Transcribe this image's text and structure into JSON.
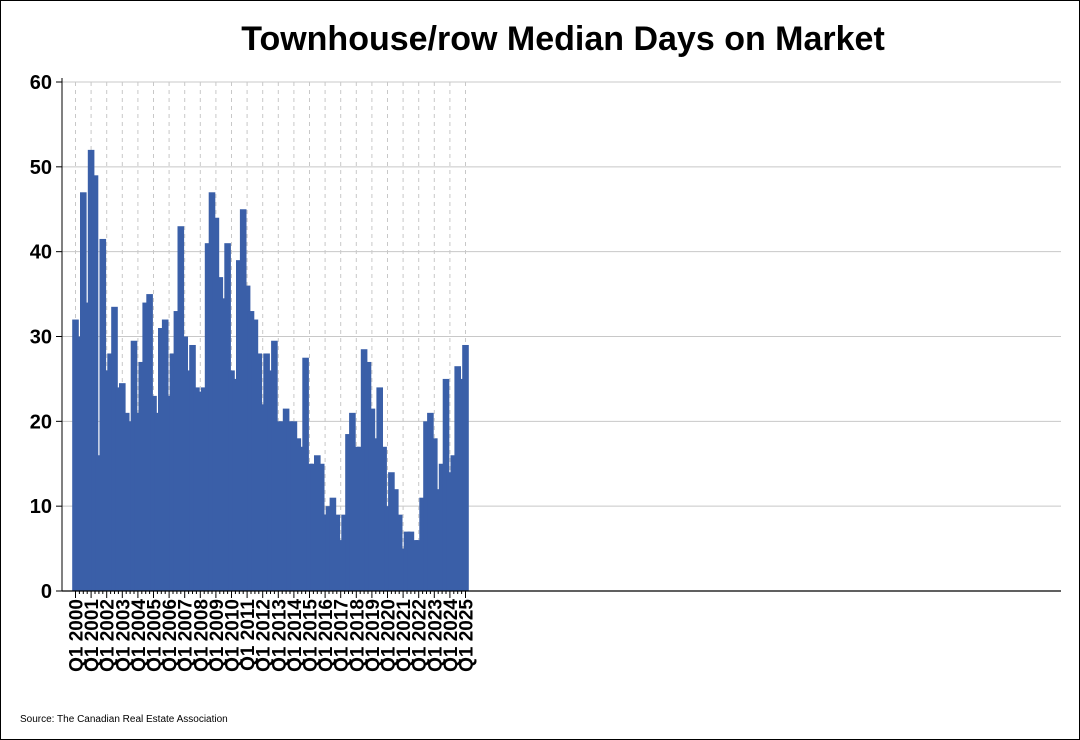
{
  "chart_data": {
    "type": "bar",
    "title": "Townhouse/row Median Days on Market",
    "source": "Source: The Canadian Real Estate Association",
    "xlabel": "",
    "ylabel": "",
    "ylim": [
      0,
      60
    ],
    "yticks": [
      0,
      10,
      20,
      30,
      40,
      50,
      60
    ],
    "grid": true,
    "legend": "none",
    "bar_color": "#3A5FA8",
    "tick_labels": [
      "Q1 2000",
      "Q1 2001",
      "Q1 2002",
      "Q1 2003",
      "Q1 2004",
      "Q1 2005",
      "Q1 2006",
      "Q1 2007",
      "Q1 2008",
      "Q1 2009",
      "Q1 2010",
      "Q1 2011",
      "Q1 2012",
      "Q1 2013",
      "Q1 2014",
      "Q1 2015",
      "Q1 2016",
      "Q1 2017",
      "Q1 2018",
      "Q1 2019",
      "Q1 2020",
      "Q1 2021",
      "Q1 2022",
      "Q1 2023",
      "Q1 2024",
      "Q1 2025"
    ],
    "categories": [
      "Q1 2000",
      "Q2 2000",
      "Q3 2000",
      "Q4 2000",
      "Q1 2001",
      "Q2 2001",
      "Q3 2001",
      "Q4 2001",
      "Q1 2002",
      "Q2 2002",
      "Q3 2002",
      "Q4 2002",
      "Q1 2003",
      "Q2 2003",
      "Q3 2003",
      "Q4 2003",
      "Q1 2004",
      "Q2 2004",
      "Q3 2004",
      "Q4 2004",
      "Q1 2005",
      "Q2 2005",
      "Q3 2005",
      "Q4 2005",
      "Q1 2006",
      "Q2 2006",
      "Q3 2006",
      "Q4 2006",
      "Q1 2007",
      "Q2 2007",
      "Q3 2007",
      "Q4 2007",
      "Q1 2008",
      "Q2 2008",
      "Q3 2008",
      "Q4 2008",
      "Q1 2009",
      "Q2 2009",
      "Q3 2009",
      "Q4 2009",
      "Q1 2010",
      "Q2 2010",
      "Q3 2010",
      "Q4 2010",
      "Q1 2011",
      "Q2 2011",
      "Q3 2011",
      "Q4 2011",
      "Q1 2012",
      "Q2 2012",
      "Q3 2012",
      "Q4 2012",
      "Q1 2013",
      "Q2 2013",
      "Q3 2013",
      "Q4 2013",
      "Q1 2014",
      "Q2 2014",
      "Q3 2014",
      "Q4 2014",
      "Q1 2015",
      "Q2 2015",
      "Q3 2015",
      "Q4 2015",
      "Q1 2016",
      "Q2 2016",
      "Q3 2016",
      "Q4 2016",
      "Q1 2017",
      "Q2 2017",
      "Q3 2017",
      "Q4 2017",
      "Q1 2018",
      "Q2 2018",
      "Q3 2018",
      "Q4 2018",
      "Q1 2019",
      "Q2 2019",
      "Q3 2019",
      "Q4 2019",
      "Q1 2020",
      "Q2 2020",
      "Q3 2020",
      "Q4 2020",
      "Q1 2021",
      "Q2 2021",
      "Q3 2021",
      "Q4 2021",
      "Q1 2022",
      "Q2 2022",
      "Q3 2022",
      "Q4 2022",
      "Q1 2023",
      "Q2 2023",
      "Q3 2023",
      "Q4 2023",
      "Q1 2024",
      "Q2 2024",
      "Q3 2024",
      "Q4 2024",
      "Q1 2025"
    ],
    "values": [
      32,
      30,
      47,
      34,
      52,
      49,
      16,
      41.5,
      26,
      28,
      33.5,
      24,
      24.5,
      21,
      20,
      29.5,
      21,
      27,
      34,
      35,
      23,
      21,
      31,
      32,
      23,
      28,
      33,
      43,
      30,
      26,
      29,
      24,
      23.5,
      24,
      41,
      47,
      44,
      37,
      34.5,
      41,
      26,
      25,
      39,
      45,
      36,
      33,
      32,
      28,
      22,
      28,
      26,
      29.5,
      20,
      20,
      21.5,
      20,
      20,
      18,
      17,
      27.5,
      15,
      15,
      16,
      15,
      9,
      10,
      11,
      9,
      6,
      9,
      18.5,
      21,
      17,
      17,
      28.5,
      27,
      21.5,
      18,
      24,
      17,
      10,
      14,
      12,
      9,
      5,
      7,
      7,
      6,
      6,
      11,
      20,
      21,
      18,
      12,
      15,
      25,
      14,
      16,
      26.5,
      25,
      29
    ]
  }
}
